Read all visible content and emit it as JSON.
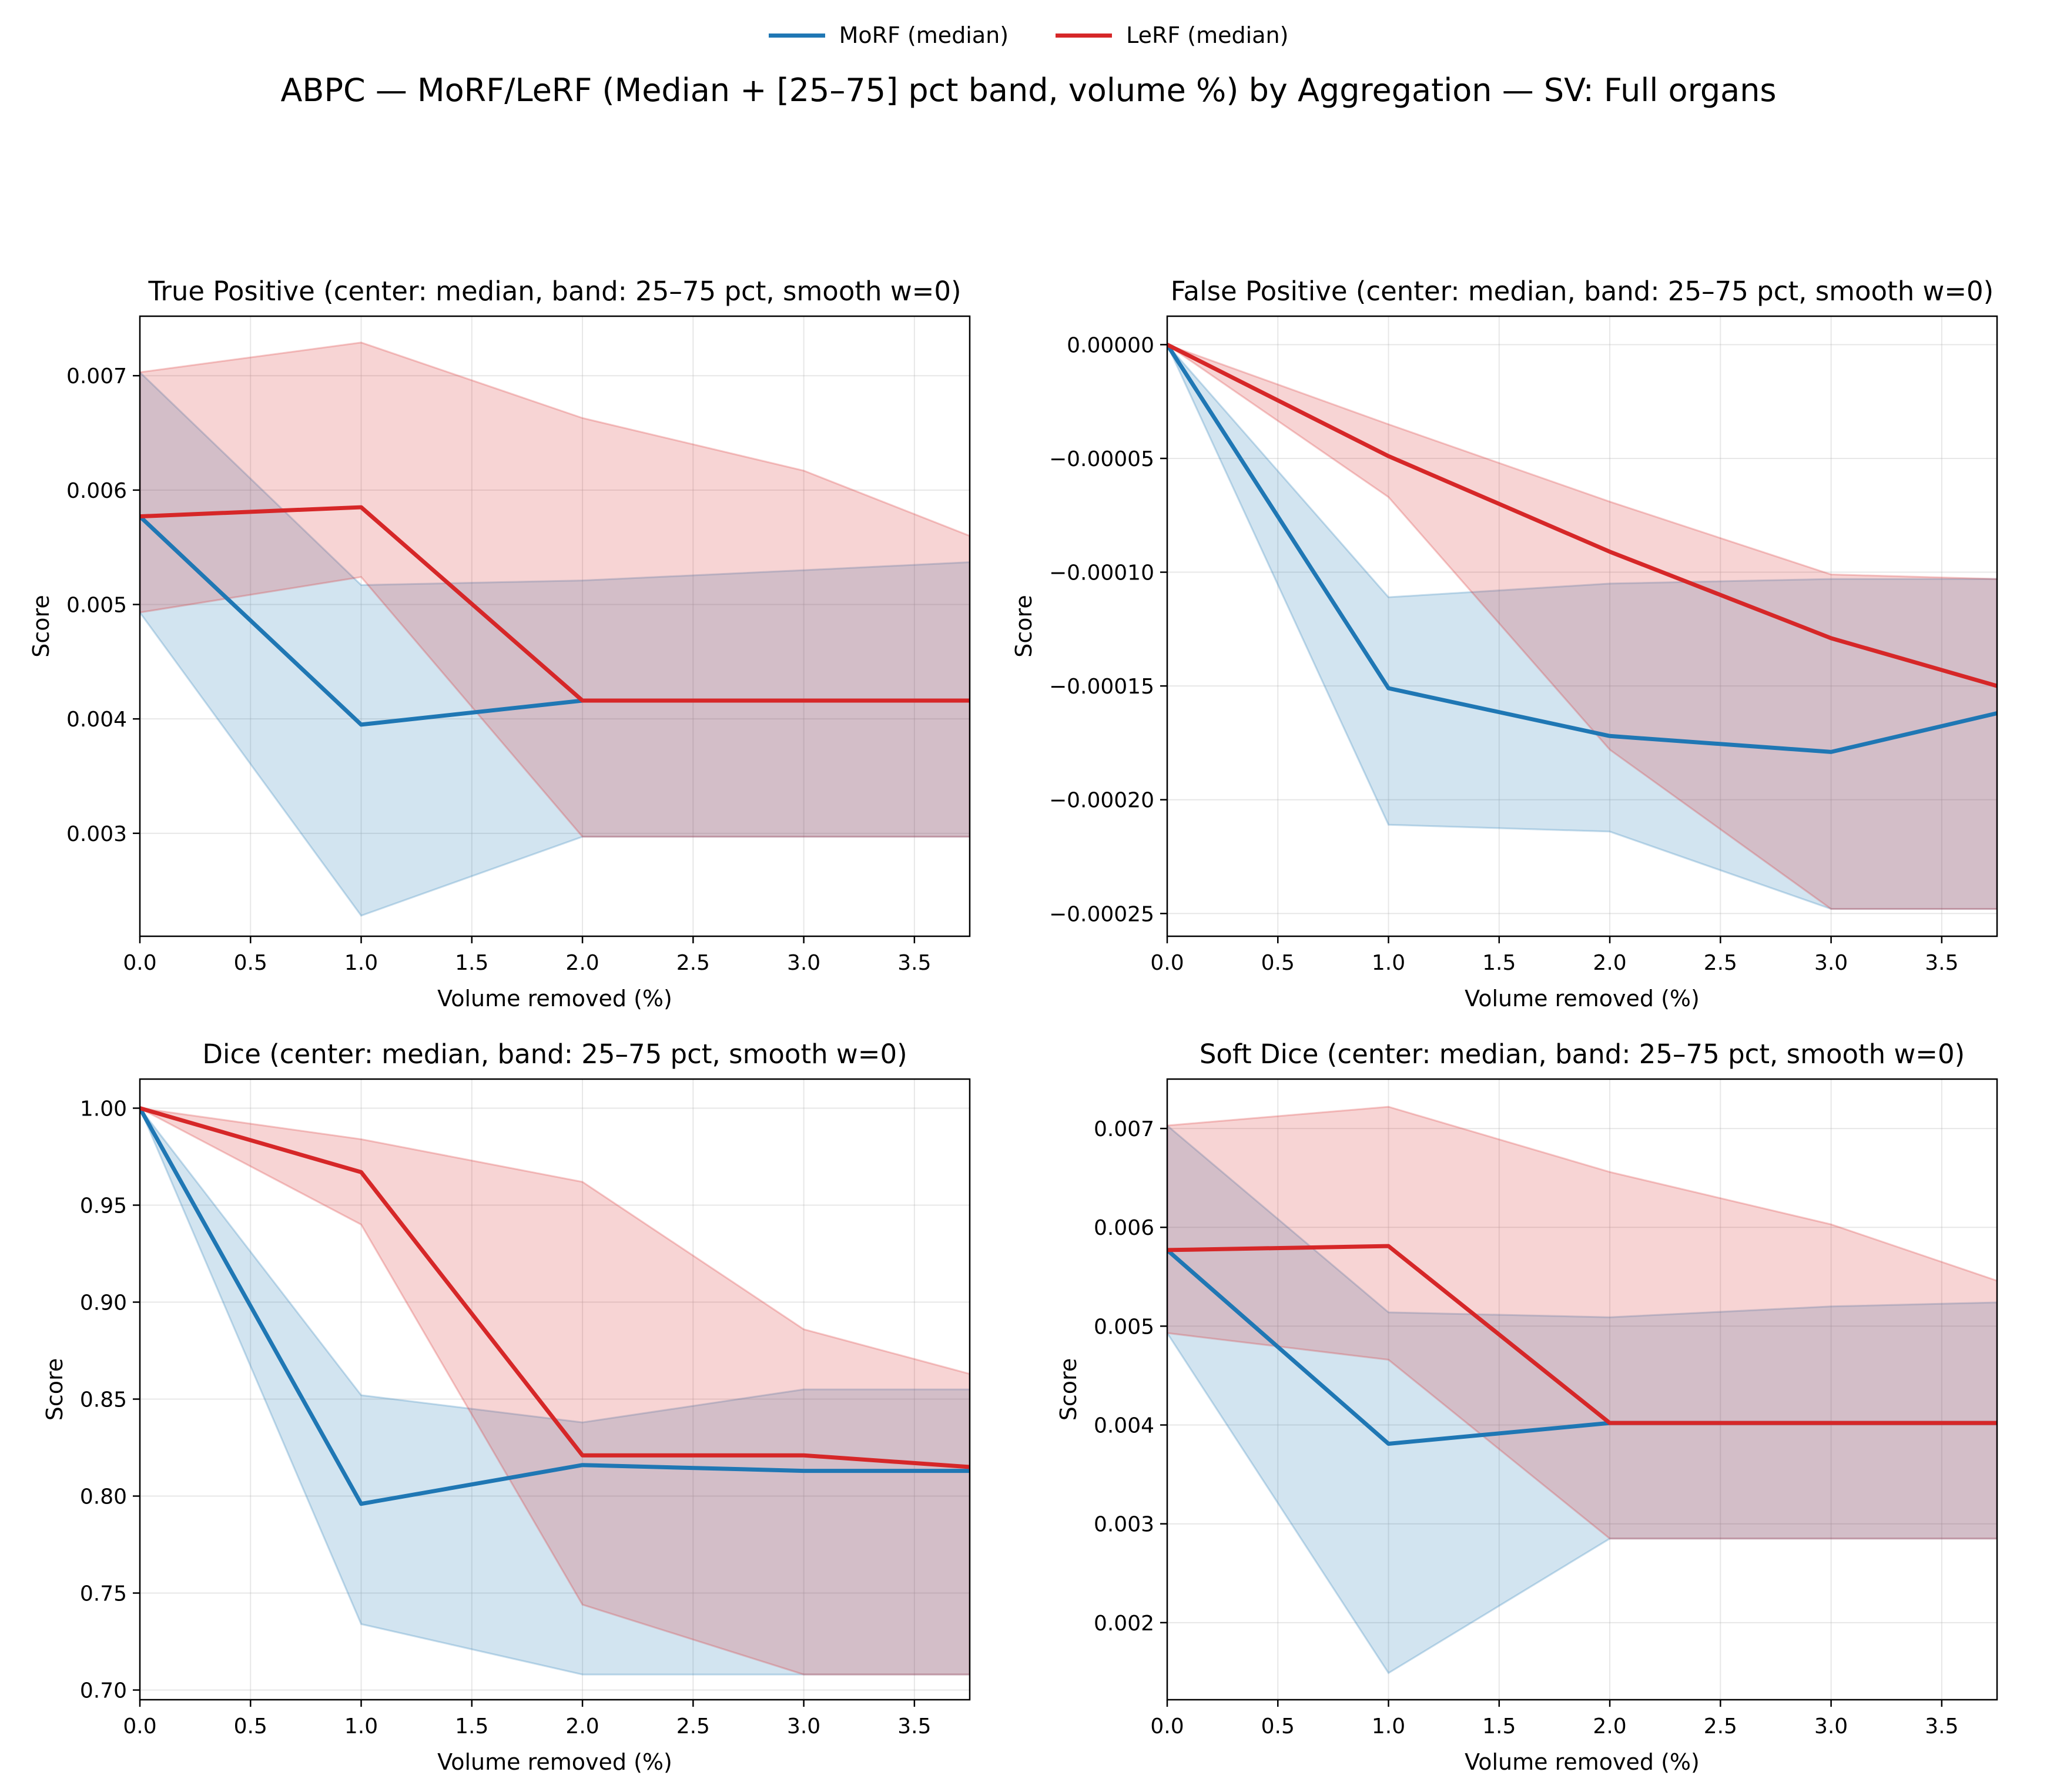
{
  "legend": {
    "items": [
      {
        "label": "MoRF (median)",
        "color": "#1f77b4"
      },
      {
        "label": "LeRF (median)",
        "color": "#d62728"
      }
    ]
  },
  "title": "ABPC — MoRF/LeRF (Median + [25–75] pct band, volume %) by Aggregation — SV: Full organs",
  "colors": {
    "morf": "#1f77b4",
    "lerf": "#d62728"
  },
  "chart_data": [
    {
      "type": "line",
      "title": "True Positive (center: median, band: 25–75 pct, smooth w=0)",
      "xlabel": "Volume removed (%)",
      "ylabel": "Score",
      "xlim": [
        0,
        3.75
      ],
      "ylim": [
        0.0021,
        0.00752
      ],
      "xticks": [
        0,
        0.5,
        1,
        1.5,
        2,
        2.5,
        3,
        3.5
      ],
      "xtick_labels": [
        "0.0",
        "0.5",
        "1.0",
        "1.5",
        "2.0",
        "2.5",
        "3.0",
        "3.5"
      ],
      "yticks": [
        0.003,
        0.004,
        0.005,
        0.006,
        0.007
      ],
      "ytick_labels": [
        "0.003",
        "0.004",
        "0.005",
        "0.006",
        "0.007"
      ],
      "grid": true,
      "x": [
        0,
        1,
        2,
        3,
        3.75
      ],
      "series": [
        {
          "name": "MoRF (median)",
          "median": [
            0.00577,
            0.00395,
            0.00416,
            0.00416,
            0.00416
          ],
          "q25": [
            0.00493,
            0.00228,
            0.00297,
            0.00297,
            0.00297
          ],
          "q75": [
            0.00703,
            0.00517,
            0.00521,
            0.0053,
            0.00537
          ]
        },
        {
          "name": "LeRF (median)",
          "median": [
            0.00577,
            0.00585,
            0.00416,
            0.00416,
            0.00416
          ],
          "q25": [
            0.00493,
            0.00524,
            0.00297,
            0.00297,
            0.00297
          ],
          "q75": [
            0.00703,
            0.00729,
            0.00663,
            0.00617,
            0.0056
          ]
        }
      ]
    },
    {
      "type": "line",
      "title": "False Positive (center: median, band: 25–75 pct, smooth w=0)",
      "xlabel": "Volume removed (%)",
      "ylabel": "Score",
      "xlim": [
        0,
        3.75
      ],
      "ylim": [
        -0.00026,
        1.25e-05
      ],
      "xticks": [
        0,
        0.5,
        1,
        1.5,
        2,
        2.5,
        3,
        3.5
      ],
      "xtick_labels": [
        "0.0",
        "0.5",
        "1.0",
        "1.5",
        "2.0",
        "2.5",
        "3.0",
        "3.5"
      ],
      "yticks": [
        0.0,
        -5e-05,
        -0.0001,
        -0.00015,
        -0.0002,
        -0.00025
      ],
      "ytick_labels": [
        "0.00000",
        "−0.00005",
        "−0.00010",
        "−0.00015",
        "−0.00020",
        "−0.00025"
      ],
      "grid": true,
      "x": [
        0,
        1,
        2,
        3,
        3.75
      ],
      "series": [
        {
          "name": "MoRF (median)",
          "median": [
            0.0,
            -0.000151,
            -0.000172,
            -0.000179,
            -0.000162
          ],
          "q25": [
            0.0,
            -0.000211,
            -0.000214,
            -0.000248,
            -0.000248
          ],
          "q75": [
            0.0,
            -0.000111,
            -0.000105,
            -0.000103,
            -0.000103
          ]
        },
        {
          "name": "LeRF (median)",
          "median": [
            0.0,
            -4.9e-05,
            -9.1e-05,
            -0.000129,
            -0.00015
          ],
          "q25": [
            0.0,
            -6.7e-05,
            -0.000178,
            -0.000248,
            -0.000248
          ],
          "q75": [
            0.0,
            -3.5e-05,
            -6.9e-05,
            -0.000101,
            -0.000103
          ]
        }
      ]
    },
    {
      "type": "line",
      "title": "Dice (center: median, band: 25–75 pct, smooth w=0)",
      "xlabel": "Volume removed (%)",
      "ylabel": "Score",
      "xlim": [
        0,
        3.75
      ],
      "ylim": [
        0.695,
        1.015
      ],
      "xticks": [
        0,
        0.5,
        1,
        1.5,
        2,
        2.5,
        3,
        3.5
      ],
      "xtick_labels": [
        "0.0",
        "0.5",
        "1.0",
        "1.5",
        "2.0",
        "2.5",
        "3.0",
        "3.5"
      ],
      "yticks": [
        0.7,
        0.75,
        0.8,
        0.85,
        0.9,
        0.95,
        1.0
      ],
      "ytick_labels": [
        "0.70",
        "0.75",
        "0.80",
        "0.85",
        "0.90",
        "0.95",
        "1.00"
      ],
      "grid": true,
      "x": [
        0,
        1,
        2,
        3,
        3.75
      ],
      "series": [
        {
          "name": "MoRF (median)",
          "median": [
            1.0,
            0.796,
            0.816,
            0.813,
            0.813
          ],
          "q25": [
            1.0,
            0.734,
            0.708,
            0.708,
            0.708
          ],
          "q75": [
            1.0,
            0.852,
            0.838,
            0.855,
            0.855
          ]
        },
        {
          "name": "LeRF (median)",
          "median": [
            1.0,
            0.967,
            0.821,
            0.821,
            0.815
          ],
          "q25": [
            1.0,
            0.94,
            0.744,
            0.708,
            0.708
          ],
          "q75": [
            1.0,
            0.984,
            0.962,
            0.886,
            0.863
          ]
        }
      ]
    },
    {
      "type": "line",
      "title": "Soft Dice (center: median, band: 25–75 pct, smooth w=0)",
      "xlabel": "Volume removed (%)",
      "ylabel": "Score",
      "xlim": [
        0,
        3.75
      ],
      "ylim": [
        0.00122,
        0.0075
      ],
      "xticks": [
        0,
        0.5,
        1,
        1.5,
        2,
        2.5,
        3,
        3.5
      ],
      "xtick_labels": [
        "0.0",
        "0.5",
        "1.0",
        "1.5",
        "2.0",
        "2.5",
        "3.0",
        "3.5"
      ],
      "yticks": [
        0.002,
        0.003,
        0.004,
        0.005,
        0.006,
        0.007
      ],
      "ytick_labels": [
        "0.002",
        "0.003",
        "0.004",
        "0.005",
        "0.006",
        "0.007"
      ],
      "grid": true,
      "x": [
        0,
        1,
        2,
        3,
        3.75
      ],
      "series": [
        {
          "name": "MoRF (median)",
          "median": [
            0.00577,
            0.00381,
            0.00402,
            0.00402,
            0.00402
          ],
          "q25": [
            0.00493,
            0.00149,
            0.00285,
            0.00285,
            0.00285
          ],
          "q75": [
            0.00703,
            0.00514,
            0.00509,
            0.0052,
            0.00524
          ]
        },
        {
          "name": "LeRF (median)",
          "median": [
            0.00577,
            0.00581,
            0.00402,
            0.00402,
            0.00402
          ],
          "q25": [
            0.00493,
            0.00466,
            0.00285,
            0.00285,
            0.00285
          ],
          "q75": [
            0.00703,
            0.00722,
            0.00656,
            0.00603,
            0.00546
          ]
        }
      ]
    }
  ]
}
